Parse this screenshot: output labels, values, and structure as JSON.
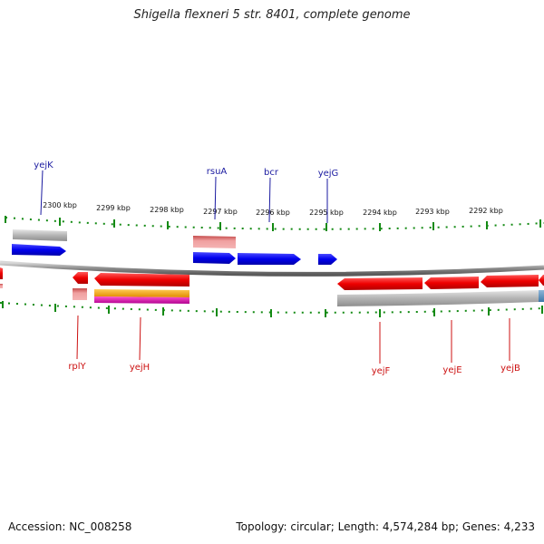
{
  "title": "Shigella flexneri 5 str. 8401, complete genome",
  "footer": {
    "accession": "Accession: NC_008258",
    "summary": "Topology: circular; Length: 4,574,284 bp; Genes: 4,233"
  },
  "colors": {
    "forward_gene": "#0000ee",
    "reverse_gene": "#ee0000",
    "tick": "#138a13",
    "backbone": "#8a8a8a",
    "forward_label": "#1a1aa0",
    "reverse_label": "#cc1111"
  },
  "scale_ticks": [
    "2300 kbp",
    "2299 kbp",
    "2298 kbp",
    "2297 kbp",
    "2296 kbp",
    "2295 kbp",
    "2294 kbp",
    "2293 kbp",
    "2292 kbp"
  ],
  "forward_gene_labels": [
    "yejK",
    "rsuA",
    "bcr",
    "yejG"
  ],
  "reverse_gene_labels": [
    "rplY",
    "yejH",
    "yejF",
    "yejE",
    "yejB"
  ]
}
